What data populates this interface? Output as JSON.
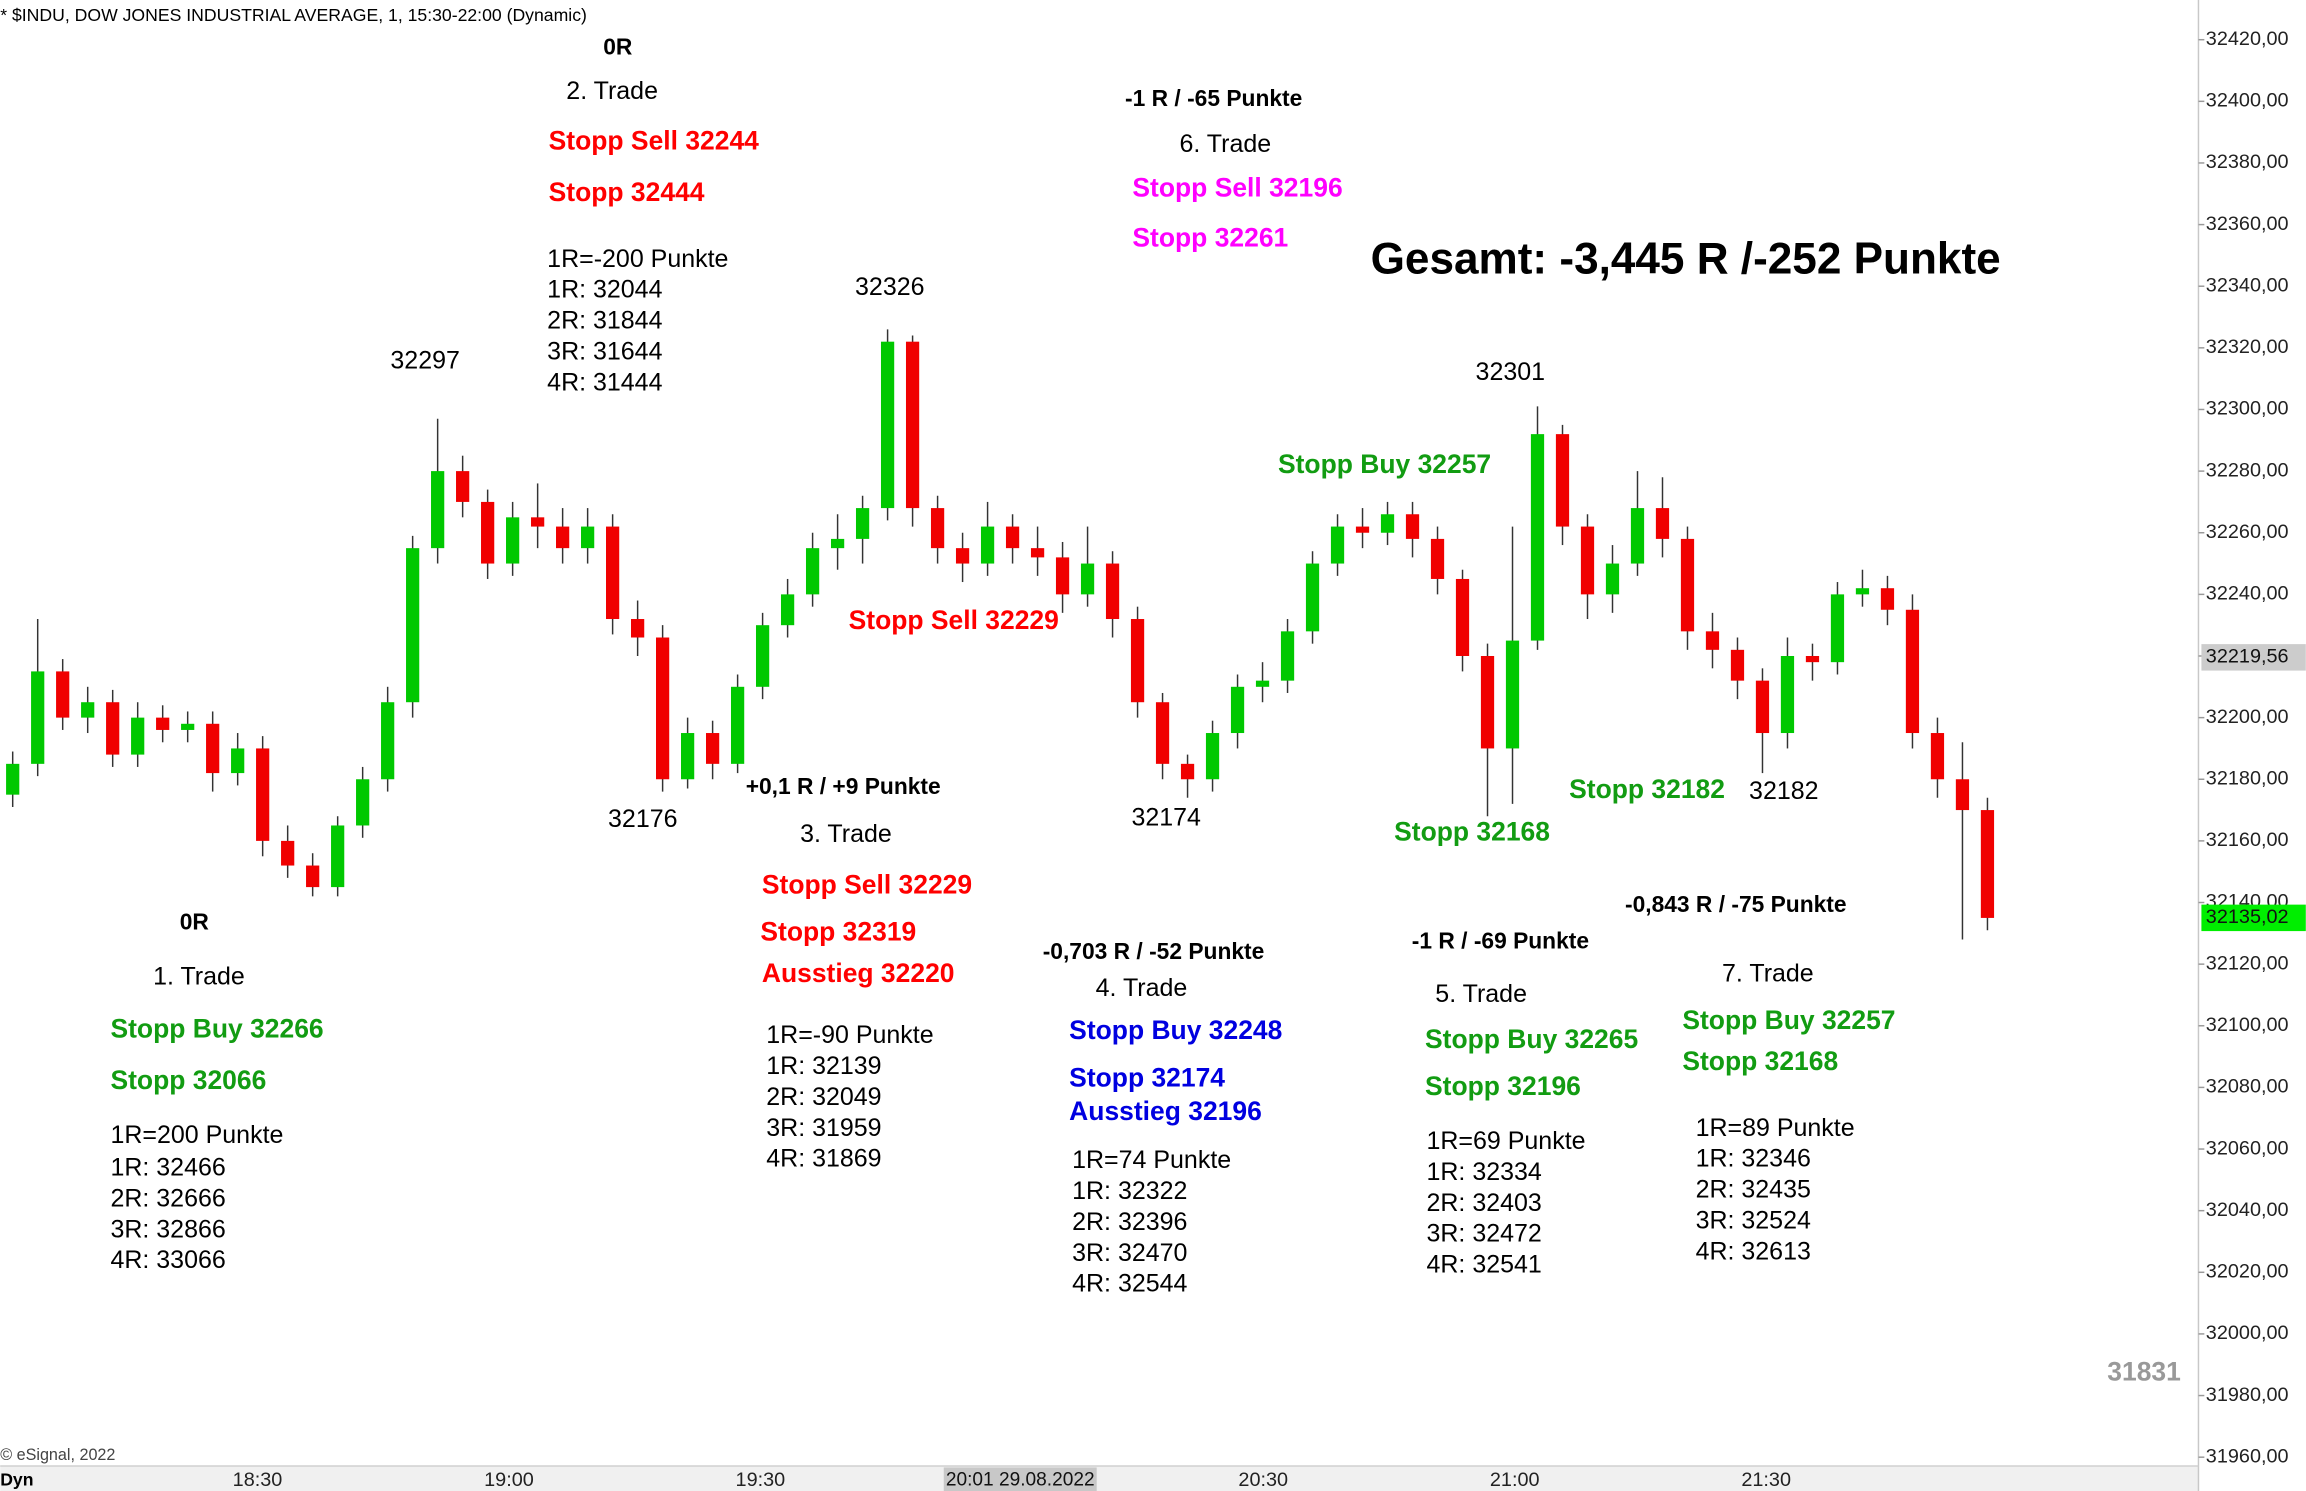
{
  "chart_data": {
    "type": "candlestick",
    "up_color": "#00c800",
    "down_color": "#f00000",
    "wick_color": "#333333",
    "grid": false,
    "open": [
      32175,
      32185,
      32215,
      32200,
      32205,
      32188,
      32200,
      32196,
      32198,
      32182,
      32190,
      32160,
      32152,
      32145,
      32165,
      32180,
      32205,
      32255,
      32280,
      32270,
      32250,
      32265,
      32262,
      32255,
      32262,
      32232,
      32226,
      32180,
      32195,
      32185,
      32210,
      32230,
      32240,
      32255,
      32258,
      32268,
      32322,
      32268,
      32255,
      32250,
      32262,
      32255,
      32252,
      32240,
      32250,
      32232,
      32205,
      32185,
      32180,
      32195,
      32210,
      32212,
      32228,
      32250,
      32262,
      32260,
      32266,
      32258,
      32245,
      32220,
      32190,
      32225,
      32292,
      32262,
      32240,
      32250,
      32268,
      32258,
      32228,
      32222,
      32212,
      32195,
      32220,
      32218,
      32240,
      32242,
      32235,
      32195,
      32180,
      32170
    ],
    "high": [
      32189,
      32232,
      32219,
      32210,
      32209,
      32205,
      32204,
      32202,
      32202,
      32195,
      32194,
      32165,
      32156,
      32168,
      32184,
      32210,
      32259,
      32297,
      32285,
      32274,
      32270,
      32276,
      32268,
      32268,
      32266,
      32238,
      32230,
      32200,
      32199,
      32214,
      32234,
      32245,
      32260,
      32266,
      32272,
      32326,
      32324,
      32272,
      32260,
      32270,
      32266,
      32262,
      32257,
      32262,
      32254,
      32236,
      32208,
      32188,
      32199,
      32214,
      32218,
      32232,
      32254,
      32266,
      32268,
      32270,
      32270,
      32262,
      32248,
      32224,
      32262,
      32301,
      32295,
      32266,
      32256,
      32280,
      32278,
      32262,
      32234,
      32226,
      32216,
      32226,
      32224,
      32244,
      32248,
      32246,
      32240,
      32200,
      32192,
      32174
    ],
    "low": [
      32171,
      32181,
      32196,
      32195,
      32184,
      32184,
      32192,
      32192,
      32176,
      32178,
      32155,
      32148,
      32142,
      32142,
      32161,
      32176,
      32200,
      32250,
      32265,
      32245,
      32246,
      32255,
      32250,
      32250,
      32227,
      32220,
      32176,
      32177,
      32180,
      32182,
      32206,
      32226,
      32236,
      32248,
      32250,
      32264,
      32262,
      32250,
      32244,
      32246,
      32250,
      32246,
      32234,
      32236,
      32226,
      32200,
      32180,
      32174,
      32176,
      32190,
      32205,
      32208,
      32224,
      32246,
      32255,
      32256,
      32252,
      32240,
      32215,
      32168,
      32172,
      32222,
      32256,
      32232,
      32234,
      32246,
      32252,
      32222,
      32216,
      32206,
      32182,
      32190,
      32212,
      32214,
      32236,
      32230,
      32190,
      32174,
      32128,
      32131
    ],
    "close": [
      32185,
      32215,
      32200,
      32205,
      32188,
      32200,
      32196,
      32198,
      32182,
      32190,
      32160,
      32152,
      32145,
      32165,
      32180,
      32205,
      32255,
      32280,
      32270,
      32250,
      32265,
      32262,
      32255,
      32262,
      32232,
      32226,
      32180,
      32195,
      32185,
      32210,
      32230,
      32240,
      32255,
      32258,
      32268,
      32322,
      32268,
      32255,
      32250,
      32262,
      32255,
      32252,
      32240,
      32250,
      32232,
      32205,
      32185,
      32180,
      32195,
      32210,
      32212,
      32228,
      32250,
      32262,
      32260,
      32266,
      32258,
      32245,
      32220,
      32190,
      32225,
      32292,
      32262,
      32240,
      32250,
      32268,
      32258,
      32228,
      32222,
      32212,
      32195,
      32220,
      32218,
      32240,
      32242,
      32235,
      32195,
      32180,
      32170,
      32135
    ],
    "ylim": [
      31960,
      32420
    ],
    "yticks": [
      {
        "value": 31960,
        "label": "31960,00"
      },
      {
        "value": 31980,
        "label": "31980,00"
      },
      {
        "value": 32000,
        "label": "32000,00"
      },
      {
        "value": 32020,
        "label": "32020,00"
      },
      {
        "value": 32040,
        "label": "32040,00"
      },
      {
        "value": 32060,
        "label": "32060,00"
      },
      {
        "value": 32080,
        "label": "32080,00"
      },
      {
        "value": 32100,
        "label": "32100,00"
      },
      {
        "value": 32120,
        "label": "32120,00"
      },
      {
        "value": 32140,
        "label": "32140,00"
      },
      {
        "value": 32160,
        "label": "32160,00"
      },
      {
        "value": 32180,
        "label": "32180,00"
      },
      {
        "value": 32200,
        "label": "32200,00"
      },
      {
        "value": 32220,
        "label": "32220,00"
      },
      {
        "value": 32240,
        "label": "32240,00"
      },
      {
        "value": 32260,
        "label": "32260,00"
      },
      {
        "value": 32280,
        "label": "32280,00"
      },
      {
        "value": 32300,
        "label": "32300,00"
      },
      {
        "value": 32320,
        "label": "32320,00"
      },
      {
        "value": 32340,
        "label": "32340,00"
      },
      {
        "value": 32360,
        "label": "32360,00"
      },
      {
        "value": 32380,
        "label": "32380,00"
      },
      {
        "value": 32400,
        "label": "32400,00"
      },
      {
        "value": 32420,
        "label": "32420,00"
      }
    ],
    "xticks": [
      "18:30",
      "19:00",
      "19:30",
      "20:30",
      "21:00",
      "21:30"
    ],
    "crosshair_label": "20:01 29.08.2022",
    "price_labels": [
      {
        "value": 32219.56,
        "label": "32219,56",
        "color": "#cccccc"
      },
      {
        "value": 32135.02,
        "label": "32135,02",
        "color": "#00ee00"
      }
    ],
    "annotations": [
      {
        "text": "* $INDU, DOW JONES INDUSTRIAL AVERAGE, 1, 15:30-22:00 (Dynamic)",
        "color": "#000000"
      },
      {
        "text": "© eSignal, 2022",
        "color": "#444444"
      },
      {
        "text": "Dyn",
        "color": "#000000"
      },
      {
        "text": "0R",
        "color": "#000000"
      },
      {
        "text": "2. Trade",
        "color": "#000000"
      },
      {
        "text": "Stopp Sell 32244",
        "color": "#ff0000"
      },
      {
        "text": "Stopp 32444",
        "color": "#ff0000"
      },
      {
        "text": "1R=-200 Punkte",
        "color": "#000000"
      },
      {
        "text": "1R: 32044",
        "color": "#000000"
      },
      {
        "text": "2R: 31844",
        "color": "#000000"
      },
      {
        "text": "3R: 31644",
        "color": "#000000"
      },
      {
        "text": "4R: 31444",
        "color": "#000000"
      },
      {
        "text": "32297",
        "color": "#000000"
      },
      {
        "text": "32326",
        "color": "#000000"
      },
      {
        "text": "-1 R / -65 Punkte",
        "color": "#000000"
      },
      {
        "text": "6. Trade",
        "color": "#000000"
      },
      {
        "text": "Stopp Sell 32196",
        "color": "#ff00ff"
      },
      {
        "text": "Stopp 32261",
        "color": "#ff00ff"
      },
      {
        "text": "Gesamt: -3,445 R /-252 Punkte",
        "color": "#000000"
      },
      {
        "text": "32301",
        "color": "#000000"
      },
      {
        "text": "Stopp Buy 32257",
        "color": "#129c12"
      },
      {
        "text": "Stopp Sell 32229",
        "color": "#ff0000"
      },
      {
        "text": "32176",
        "color": "#000000"
      },
      {
        "text": "32174",
        "color": "#000000"
      },
      {
        "text": "+0,1 R / +9 Punkte",
        "color": "#000000"
      },
      {
        "text": "3. Trade",
        "color": "#000000"
      },
      {
        "text": "Stopp Sell 32229",
        "color": "#ff0000"
      },
      {
        "text": "Stopp 32319",
        "color": "#ff0000"
      },
      {
        "text": "Ausstieg 32220",
        "color": "#ff0000"
      },
      {
        "text": "1R=-90 Punkte",
        "color": "#000000"
      },
      {
        "text": "1R: 32139",
        "color": "#000000"
      },
      {
        "text": "2R: 32049",
        "color": "#000000"
      },
      {
        "text": "3R: 31959",
        "color": "#000000"
      },
      {
        "text": "4R: 31869",
        "color": "#000000"
      },
      {
        "text": "Stopp 32168",
        "color": "#129c12"
      },
      {
        "text": "Stopp 32182",
        "color": "#129c12"
      },
      {
        "text": "32182",
        "color": "#000000"
      },
      {
        "text": "0R",
        "color": "#000000"
      },
      {
        "text": "1. Trade",
        "color": "#000000"
      },
      {
        "text": "Stopp Buy 32266",
        "color": "#129c12"
      },
      {
        "text": "Stopp 32066",
        "color": "#129c12"
      },
      {
        "text": "1R=200 Punkte",
        "color": "#000000"
      },
      {
        "text": "1R: 32466",
        "color": "#000000"
      },
      {
        "text": "2R: 32666",
        "color": "#000000"
      },
      {
        "text": "3R: 32866",
        "color": "#000000"
      },
      {
        "text": "4R: 33066",
        "color": "#000000"
      },
      {
        "text": "-0,703 R / -52 Punkte",
        "color": "#000000"
      },
      {
        "text": "4. Trade",
        "color": "#000000"
      },
      {
        "text": "Stopp Buy 32248",
        "color": "#0000e0"
      },
      {
        "text": "Stopp 32174",
        "color": "#0000e0"
      },
      {
        "text": "Ausstieg 32196",
        "color": "#0000e0"
      },
      {
        "text": "1R=74 Punkte",
        "color": "#000000"
      },
      {
        "text": "1R: 32322",
        "color": "#000000"
      },
      {
        "text": "2R: 32396",
        "color": "#000000"
      },
      {
        "text": "3R: 32470",
        "color": "#000000"
      },
      {
        "text": "4R: 32544",
        "color": "#000000"
      },
      {
        "text": "-1 R / -69 Punkte",
        "color": "#000000"
      },
      {
        "text": "5. Trade",
        "color": "#000000"
      },
      {
        "text": "Stopp Buy 32265",
        "color": "#129c12"
      },
      {
        "text": "Stopp 32196",
        "color": "#129c12"
      },
      {
        "text": "1R=69 Punkte",
        "color": "#000000"
      },
      {
        "text": "1R: 32334",
        "color": "#000000"
      },
      {
        "text": "2R: 32403",
        "color": "#000000"
      },
      {
        "text": "3R: 32472",
        "color": "#000000"
      },
      {
        "text": "4R: 32541",
        "color": "#000000"
      },
      {
        "text": "-0,843 R / -75 Punkte",
        "color": "#000000"
      },
      {
        "text": "7. Trade",
        "color": "#000000"
      },
      {
        "text": "Stopp Buy 32257",
        "color": "#129c12"
      },
      {
        "text": "Stopp 32168",
        "color": "#129c12"
      },
      {
        "text": "1R=89 Punkte",
        "color": "#000000"
      },
      {
        "text": "1R: 32346",
        "color": "#000000"
      },
      {
        "text": "2R: 32435",
        "color": "#000000"
      },
      {
        "text": "3R: 32524",
        "color": "#000000"
      },
      {
        "text": "4R: 32613",
        "color": "#000000"
      },
      {
        "text": "31831",
        "color": "#999999"
      }
    ]
  }
}
